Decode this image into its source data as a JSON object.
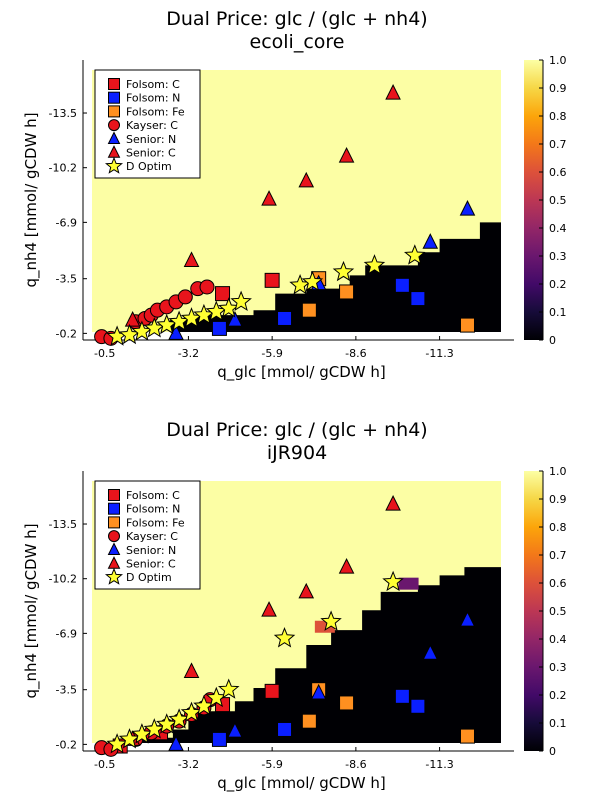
{
  "colors": {
    "folsom_c": "#e8141c",
    "folsom_n": "#0a1fff",
    "folsom_fe": "#ff9020",
    "kayser_c": "#e8141c",
    "senior_n": "#0a1fff",
    "senior_c": "#e8141c",
    "d_optim": "#ffff33",
    "bg_high": "#fcfea4",
    "bg_low": "#000004"
  },
  "chart_data": [
    {
      "type": "heatmap",
      "title": "Dual Price: glc / (glc + nh4)",
      "subtitle": "ecoli_core",
      "xlabel": "q_glc [mmol/ gCDW h]",
      "ylabel": "q_nh4 [mmol/ gCDW h]",
      "xticks": [
        "-0.5",
        "-3.2",
        "-5.9",
        "-8.6",
        "-11.3"
      ],
      "yticks": [
        "-0.2",
        "-3.5",
        "-6.9",
        "-10.2",
        "-13.5"
      ],
      "xlim": [
        0.2,
        -13.7
      ],
      "ylim": [
        0.2,
        -16.7
      ],
      "colorbar_ticks": [
        "0",
        "0.1",
        "0.2",
        "0.3",
        "0.4",
        "0.5",
        "0.6",
        "0.7",
        "0.8",
        "0.9",
        "1.0"
      ],
      "colorbar_range": [
        0,
        1
      ],
      "heatmap_boundary": [
        [
          0.15,
          0.15
        ],
        [
          -1.2,
          -0.2
        ],
        [
          -2.6,
          -1.0
        ],
        [
          -3.2,
          -1.3
        ],
        [
          -5.3,
          -1.6
        ],
        [
          -6.0,
          -2.6
        ],
        [
          -7.0,
          -2.9
        ],
        [
          -8.4,
          -3.7
        ],
        [
          -8.9,
          -4.3
        ],
        [
          -10.6,
          -5.1
        ],
        [
          -11.3,
          -5.9
        ],
        [
          -12.6,
          -6.9
        ],
        [
          -13.6,
          -6.9
        ]
      ],
      "heatmap_cells": [],
      "legend": [
        "Folsom: C",
        "Folsom: N",
        "Folsom: Fe",
        "Kayser: C",
        "Senior: N",
        "Senior: C",
        "D Optim"
      ],
      "series": [
        {
          "name": "Folsom: C",
          "marker": "square",
          "color": "#e8141c",
          "points": [
            [
              -4.3,
              -2.6
            ],
            [
              -5.9,
              -3.4
            ]
          ]
        },
        {
          "name": "Folsom: N",
          "marker": "square",
          "color": "#0a1fff",
          "points": [
            [
              -4.2,
              -0.5
            ],
            [
              -6.3,
              -1.1
            ],
            [
              -10.1,
              -3.1
            ],
            [
              -10.6,
              -2.3
            ]
          ]
        },
        {
          "name": "Folsom: Fe",
          "marker": "square",
          "color": "#ff9020",
          "points": [
            [
              -7.4,
              -3.5
            ],
            [
              -7.1,
              -1.6
            ],
            [
              -8.3,
              -2.7
            ],
            [
              -12.2,
              -0.7
            ]
          ]
        },
        {
          "name": "Kayser: C",
          "marker": "circle",
          "color": "#e8141c",
          "points": [
            [
              -0.4,
              0.0
            ],
            [
              -0.7,
              0.1
            ],
            [
              -1.5,
              -0.9
            ],
            [
              -1.8,
              -1.1
            ],
            [
              -2.0,
              -1.3
            ],
            [
              -2.2,
              -1.6
            ],
            [
              -2.5,
              -1.8
            ],
            [
              -2.8,
              -2.1
            ],
            [
              -3.1,
              -2.4
            ],
            [
              -3.5,
              -2.9
            ],
            [
              -3.8,
              -3.0
            ]
          ]
        },
        {
          "name": "Senior: N",
          "marker": "triangle",
          "color": "#0a1fff",
          "points": [
            [
              -2.8,
              -0.2
            ],
            [
              -4.7,
              -1.0
            ],
            [
              -7.4,
              -3.2
            ],
            [
              -11.0,
              -5.7
            ],
            [
              -12.2,
              -7.7
            ]
          ]
        },
        {
          "name": "Senior: C",
          "marker": "triangle",
          "color": "#e8141c",
          "points": [
            [
              -1.4,
              -1.0
            ],
            [
              -3.3,
              -4.6
            ],
            [
              -5.8,
              -8.3
            ],
            [
              -7.0,
              -9.4
            ],
            [
              -8.3,
              -10.9
            ],
            [
              -9.8,
              -14.7
            ]
          ]
        },
        {
          "name": "D Optim",
          "marker": "star",
          "color": "#ffff33",
          "points": [
            [
              -0.9,
              0.0
            ],
            [
              -1.3,
              -0.1
            ],
            [
              -1.7,
              -0.3
            ],
            [
              -2.1,
              -0.5
            ],
            [
              -2.5,
              -0.7
            ],
            [
              -2.9,
              -0.9
            ],
            [
              -3.3,
              -1.1
            ],
            [
              -3.7,
              -1.3
            ],
            [
              -4.1,
              -1.5
            ],
            [
              -4.5,
              -1.7
            ],
            [
              -4.9,
              -2.1
            ],
            [
              -6.8,
              -3.1
            ],
            [
              -7.2,
              -3.3
            ],
            [
              -8.2,
              -3.9
            ],
            [
              -9.2,
              -4.3
            ],
            [
              -10.5,
              -4.9
            ]
          ]
        }
      ]
    },
    {
      "type": "heatmap",
      "title": "Dual Price: glc / (glc + nh4)",
      "subtitle": "iJR904",
      "xlabel": "q_glc [mmol/ gCDW h]",
      "ylabel": "q_nh4 [mmol/ gCDW h]",
      "xticks": [
        "-0.5",
        "-3.2",
        "-5.9",
        "-8.6",
        "-11.3"
      ],
      "yticks": [
        "-0.2",
        "-3.5",
        "-6.9",
        "-10.2",
        "-13.5"
      ],
      "xlim": [
        0.2,
        -13.7
      ],
      "ylim": [
        0.2,
        -16.7
      ],
      "colorbar_ticks": [
        "0",
        "0.1",
        "0.2",
        "0.3",
        "0.4",
        "0.5",
        "0.6",
        "0.7",
        "0.8",
        "0.9",
        "1.0"
      ],
      "colorbar_range": [
        0,
        1
      ],
      "heatmap_boundary": [
        [
          0.15,
          0.15
        ],
        [
          -1.5,
          -0.6
        ],
        [
          -2.7,
          -1.1
        ],
        [
          -3.2,
          -2.2
        ],
        [
          -4.7,
          -2.8
        ],
        [
          -5.3,
          -3.6
        ],
        [
          -6.0,
          -4.8
        ],
        [
          -7.0,
          -6.2
        ],
        [
          -7.8,
          -7.1
        ],
        [
          -8.8,
          -8.3
        ],
        [
          -9.4,
          -9.4
        ],
        [
          -10.6,
          -9.8
        ],
        [
          -11.3,
          -10.4
        ],
        [
          -12.1,
          -10.9
        ],
        [
          -13.6,
          -10.9
        ]
      ],
      "heatmap_cells": [
        {
          "x": -10.3,
          "y": -9.9,
          "value": 0.35
        },
        {
          "x": -7.6,
          "y": -7.3,
          "value": 0.6
        }
      ],
      "legend": [
        "Folsom: C",
        "Folsom: N",
        "Folsom: Fe",
        "Kayser: C",
        "Senior: N",
        "Senior: C",
        "D Optim"
      ],
      "series": [
        {
          "name": "Folsom: C",
          "marker": "square",
          "color": "#e8141c",
          "points": [
            [
              -1.0,
              -0.1
            ],
            [
              -2.3,
              -0.9
            ],
            [
              -4.3,
              -2.6
            ],
            [
              -5.9,
              -3.4
            ]
          ]
        },
        {
          "name": "Folsom: N",
          "marker": "square",
          "color": "#0a1fff",
          "points": [
            [
              -4.2,
              -0.5
            ],
            [
              -6.3,
              -1.1
            ],
            [
              -10.1,
              -3.1
            ],
            [
              -10.6,
              -2.5
            ]
          ]
        },
        {
          "name": "Folsom: Fe",
          "marker": "square",
          "color": "#ff9020",
          "points": [
            [
              -7.4,
              -3.5
            ],
            [
              -7.1,
              -1.6
            ],
            [
              -8.3,
              -2.7
            ],
            [
              -12.2,
              -0.7
            ]
          ]
        },
        {
          "name": "Kayser: C",
          "marker": "circle",
          "color": "#e8141c",
          "points": [
            [
              -0.4,
              0.0
            ],
            [
              -0.7,
              0.1
            ],
            [
              -1.5,
              -0.5
            ],
            [
              -2.0,
              -0.9
            ],
            [
              -2.5,
              -1.3
            ],
            [
              -2.9,
              -1.6
            ],
            [
              -3.3,
              -2.0
            ],
            [
              -3.7,
              -2.4
            ],
            [
              -3.9,
              -2.9
            ]
          ]
        },
        {
          "name": "Senior: N",
          "marker": "triangle",
          "color": "#0a1fff",
          "points": [
            [
              -2.8,
              -0.2
            ],
            [
              -4.7,
              -1.0
            ],
            [
              -7.4,
              -3.3
            ],
            [
              -11.0,
              -5.7
            ],
            [
              -12.2,
              -7.7
            ]
          ]
        },
        {
          "name": "Senior: C",
          "marker": "triangle",
          "color": "#e8141c",
          "points": [
            [
              -1.4,
              -0.5
            ],
            [
              -3.3,
              -4.6
            ],
            [
              -5.8,
              -8.3
            ],
            [
              -7.0,
              -9.4
            ],
            [
              -8.3,
              -10.9
            ],
            [
              -9.8,
              -14.7
            ]
          ]
        },
        {
          "name": "D Optim",
          "marker": "star",
          "color": "#ffff33",
          "points": [
            [
              -0.9,
              -0.2
            ],
            [
              -1.3,
              -0.5
            ],
            [
              -1.7,
              -0.8
            ],
            [
              -2.1,
              -1.1
            ],
            [
              -2.5,
              -1.4
            ],
            [
              -2.9,
              -1.7
            ],
            [
              -3.3,
              -2.1
            ],
            [
              -3.7,
              -2.5
            ],
            [
              -4.1,
              -3.0
            ],
            [
              -4.5,
              -3.5
            ],
            [
              -6.3,
              -6.6
            ],
            [
              -7.8,
              -7.6
            ],
            [
              -9.8,
              -10.0
            ]
          ]
        }
      ]
    }
  ]
}
